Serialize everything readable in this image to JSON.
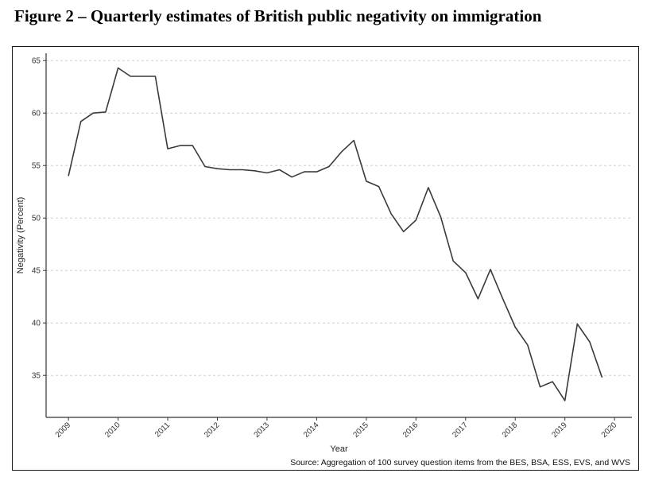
{
  "figure": {
    "title": "Figure 2 – Quarterly estimates of British public negativity on immigration",
    "source": "Source: Aggregation of 100 survey question items from the BES, BSA, ESS, EVS, and WVS"
  },
  "chart_data": {
    "type": "line",
    "title": "Figure 2 – Quarterly estimates of British public negativity on immigration",
    "xlabel": "Year",
    "ylabel": "Negativity (Percent)",
    "xlim": [
      2008.55,
      2020.35
    ],
    "ylim": [
      31,
      65.7
    ],
    "x_ticks": [
      2009,
      2010,
      2011,
      2012,
      2013,
      2014,
      2015,
      2016,
      2017,
      2018,
      2019,
      2020
    ],
    "x_tick_labels": [
      "2009",
      "2010",
      "2011",
      "2012",
      "2013",
      "2014",
      "2015",
      "2016",
      "2017",
      "2018",
      "2019",
      "2020"
    ],
    "y_ticks": [
      35,
      40,
      45,
      50,
      55,
      60,
      65
    ],
    "y_tick_labels": [
      "35",
      "40",
      "45",
      "50",
      "55",
      "60",
      "65"
    ],
    "grid": "horizontal dashed",
    "legend": "none",
    "series": [
      {
        "color": "#3a3a3a",
        "x": [
          2009.0,
          2009.25,
          2009.5,
          2009.75,
          2010.0,
          2010.25,
          2010.5,
          2010.75,
          2011.0,
          2011.25,
          2011.5,
          2011.75,
          2012.0,
          2012.25,
          2012.5,
          2012.75,
          2013.0,
          2013.25,
          2013.5,
          2013.75,
          2014.0,
          2014.25,
          2014.5,
          2014.75,
          2015.0,
          2015.25,
          2015.5,
          2015.75,
          2016.0,
          2016.25,
          2016.5,
          2016.75,
          2017.0,
          2017.25,
          2017.5,
          2017.75,
          2018.0,
          2018.25,
          2018.5,
          2018.75,
          2019.0,
          2019.25,
          2019.5,
          2019.75
        ],
        "y": [
          54.0,
          59.2,
          60.0,
          60.1,
          64.3,
          63.5,
          63.5,
          63.5,
          56.6,
          56.9,
          56.9,
          54.9,
          54.7,
          54.6,
          54.6,
          54.5,
          54.3,
          54.6,
          53.9,
          54.4,
          54.4,
          54.9,
          56.3,
          57.4,
          53.5,
          53.0,
          50.4,
          48.7,
          49.8,
          52.9,
          50.1,
          45.9,
          44.8,
          42.3,
          45.1,
          42.3,
          39.6,
          37.9,
          33.9,
          34.4,
          32.6,
          39.9,
          38.2,
          34.8
        ]
      }
    ]
  }
}
